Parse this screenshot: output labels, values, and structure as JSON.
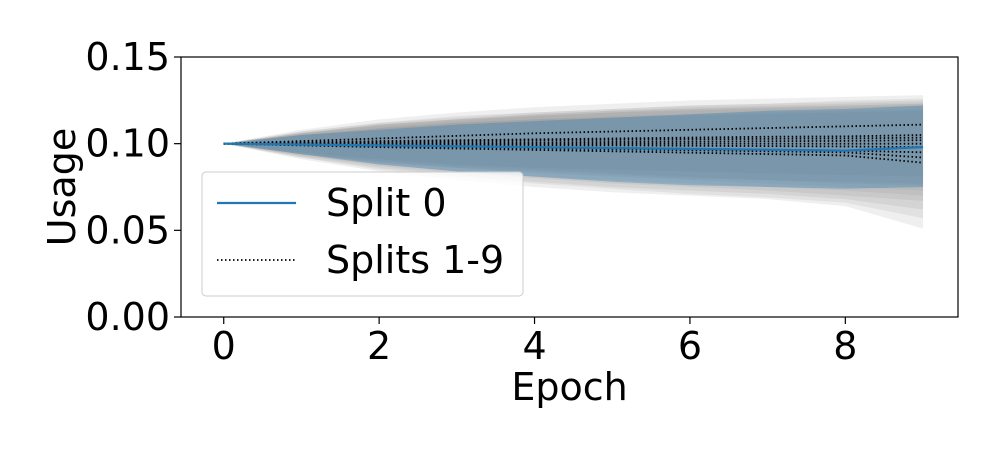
{
  "chart_data": {
    "type": "line",
    "title": "",
    "xlabel": "Epoch",
    "ylabel": "Usage",
    "xlim": [
      -0.55,
      9.45
    ],
    "ylim": [
      0,
      0.15
    ],
    "x_ticks": [
      0,
      2,
      4,
      6,
      8
    ],
    "x_tick_labels": [
      "0",
      "2",
      "4",
      "6",
      "8"
    ],
    "y_ticks": [
      0,
      0.05,
      0.1,
      0.15
    ],
    "y_tick_labels": [
      "0.00",
      "0.05",
      "0.10",
      "0.15"
    ],
    "grid": false,
    "legend_position": "lower-left",
    "legend": [
      "Split 0",
      "Splits 1-9"
    ],
    "colors": {
      "split0": "#1f77b4",
      "splits": "#000000",
      "band_split0": "#1f77b4",
      "band_splits": "#808080"
    },
    "x": [
      0,
      1,
      2,
      3,
      4,
      5,
      6,
      7,
      8,
      9
    ],
    "series": [
      {
        "name": "Split 0",
        "style": "solid",
        "values": [
          0.1,
          0.0995,
          0.099,
          0.0985,
          0.098,
          0.0975,
          0.097,
          0.0965,
          0.096,
          0.098
        ],
        "band_lower": [
          0.1,
          0.094,
          0.088,
          0.084,
          0.081,
          0.078,
          0.076,
          0.075,
          0.074,
          0.075
        ],
        "band_upper": [
          0.1,
          0.105,
          0.108,
          0.111,
          0.113,
          0.115,
          0.117,
          0.119,
          0.12,
          0.122
        ]
      },
      {
        "name": "Splits 1-9",
        "style": "dotted",
        "lines": [
          {
            "values": [
              0.1,
              0.1015,
              0.103,
              0.1045,
              0.106,
              0.107,
              0.108,
              0.109,
              0.11,
              0.111
            ],
            "band_lower": [
              0.1,
              0.095,
              0.091,
              0.088,
              0.086,
              0.085,
              0.084,
              0.083,
              0.082,
              0.081
            ],
            "band_upper": [
              0.1,
              0.108,
              0.114,
              0.118,
              0.121,
              0.123,
              0.125,
              0.126,
              0.127,
              0.128
            ]
          },
          {
            "values": [
              0.1,
              0.1008,
              0.1015,
              0.102,
              0.1025,
              0.103,
              0.1035,
              0.104,
              0.1042,
              0.105
            ],
            "band_lower": [
              0.1,
              0.094,
              0.089,
              0.086,
              0.084,
              0.082,
              0.08,
              0.079,
              0.078,
              0.077
            ],
            "band_upper": [
              0.1,
              0.107,
              0.112,
              0.116,
              0.118,
              0.12,
              0.122,
              0.123,
              0.124,
              0.125
            ]
          },
          {
            "values": [
              0.1,
              0.1005,
              0.101,
              0.1015,
              0.102,
              0.1022,
              0.1025,
              0.1028,
              0.103,
              0.1035
            ],
            "band_lower": [
              0.1,
              0.094,
              0.09,
              0.087,
              0.085,
              0.083,
              0.081,
              0.079,
              0.077,
              0.076
            ],
            "band_upper": [
              0.1,
              0.106,
              0.111,
              0.114,
              0.116,
              0.118,
              0.12,
              0.121,
              0.122,
              0.123
            ]
          },
          {
            "values": [
              0.1,
              0.1002,
              0.1004,
              0.1006,
              0.1008,
              0.101,
              0.1012,
              0.1014,
              0.1016,
              0.102
            ],
            "band_lower": [
              0.1,
              0.094,
              0.089,
              0.086,
              0.083,
              0.081,
              0.079,
              0.077,
              0.075,
              0.073
            ],
            "band_upper": [
              0.1,
              0.106,
              0.111,
              0.114,
              0.117,
              0.119,
              0.121,
              0.122,
              0.123,
              0.124
            ]
          },
          {
            "values": [
              0.1,
              0.1,
              0.1,
              0.1,
              0.1,
              0.1,
              0.1,
              0.1,
              0.1,
              0.1
            ],
            "band_lower": [
              0.1,
              0.093,
              0.088,
              0.084,
              0.081,
              0.079,
              0.077,
              0.075,
              0.073,
              0.07
            ],
            "band_upper": [
              0.1,
              0.107,
              0.112,
              0.115,
              0.118,
              0.12,
              0.122,
              0.123,
              0.125,
              0.126
            ]
          },
          {
            "values": [
              0.1,
              0.0998,
              0.0996,
              0.0994,
              0.0992,
              0.099,
              0.0988,
              0.0986,
              0.0984,
              0.098
            ],
            "band_lower": [
              0.1,
              0.093,
              0.087,
              0.083,
              0.08,
              0.077,
              0.075,
              0.073,
              0.07,
              0.067
            ],
            "band_upper": [
              0.1,
              0.106,
              0.111,
              0.114,
              0.117,
              0.119,
              0.12,
              0.121,
              0.122,
              0.123
            ]
          },
          {
            "values": [
              0.1,
              0.0995,
              0.099,
              0.0985,
              0.098,
              0.0975,
              0.097,
              0.0965,
              0.096,
              0.095
            ],
            "band_lower": [
              0.1,
              0.092,
              0.086,
              0.082,
              0.078,
              0.075,
              0.073,
              0.071,
              0.068,
              0.062
            ],
            "band_upper": [
              0.1,
              0.106,
              0.11,
              0.113,
              0.116,
              0.118,
              0.119,
              0.12,
              0.121,
              0.122
            ]
          },
          {
            "values": [
              0.1,
              0.0993,
              0.0986,
              0.098,
              0.0974,
              0.0968,
              0.0962,
              0.0956,
              0.095,
              0.092
            ],
            "band_lower": [
              0.1,
              0.092,
              0.085,
              0.081,
              0.077,
              0.074,
              0.071,
              0.069,
              0.066,
              0.057
            ],
            "band_upper": [
              0.1,
              0.105,
              0.109,
              0.112,
              0.114,
              0.116,
              0.117,
              0.118,
              0.119,
              0.12
            ]
          },
          {
            "values": [
              0.1,
              0.099,
              0.098,
              0.0972,
              0.0964,
              0.0956,
              0.0948,
              0.094,
              0.0932,
              0.089
            ],
            "band_lower": [
              0.1,
              0.091,
              0.084,
              0.079,
              0.075,
              0.072,
              0.07,
              0.068,
              0.064,
              0.051
            ],
            "band_upper": [
              0.1,
              0.105,
              0.109,
              0.112,
              0.114,
              0.115,
              0.116,
              0.117,
              0.118,
              0.119
            ]
          }
        ]
      }
    ]
  }
}
